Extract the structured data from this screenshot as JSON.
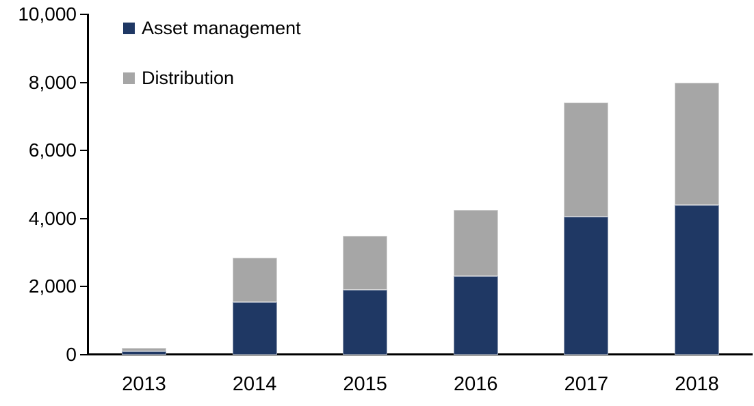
{
  "chart_data": {
    "type": "bar",
    "stacked": true,
    "title": "",
    "xlabel": "",
    "ylabel": "",
    "categories": [
      "2013",
      "2014",
      "2015",
      "2016",
      "2017",
      "2018"
    ],
    "series": [
      {
        "name": "Asset management",
        "color": "#1f3864",
        "values": [
          95,
          1550,
          1900,
          2300,
          4050,
          4400
        ]
      },
      {
        "name": "Distribution",
        "color": "#a6a6a6",
        "values": [
          100,
          1300,
          1600,
          1950,
          3350,
          3600
        ]
      }
    ],
    "ylim": [
      0,
      10000
    ],
    "y_ticks": [
      {
        "value": 0,
        "label": "0"
      },
      {
        "value": 2000,
        "label": "2,000"
      },
      {
        "value": 4000,
        "label": "4,000"
      },
      {
        "value": 6000,
        "label": "6,000"
      },
      {
        "value": 8000,
        "label": "8,000"
      },
      {
        "value": 10000,
        "label": "10,000"
      }
    ],
    "grid": false,
    "legend_position": "top-left-inside",
    "axis_color": "#000000",
    "text_color": "#000000",
    "background_color": "#ffffff"
  }
}
